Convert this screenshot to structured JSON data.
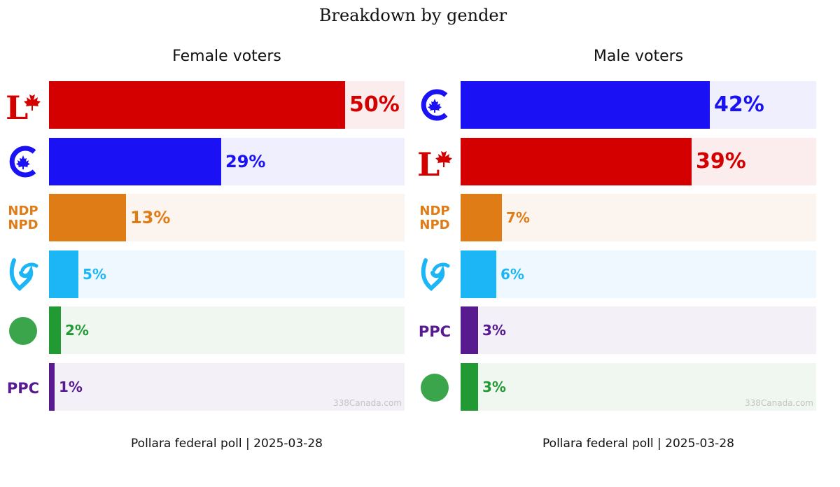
{
  "title": "Breakdown by gender",
  "parties": {
    "LPC": {
      "color": "#d40000",
      "bg": "#fbeded",
      "icon": "liberal-maple-leaf-logo"
    },
    "CPC": {
      "color": "#1a12f5",
      "bg": "#efeffd",
      "icon": "conservative-c-logo"
    },
    "NDP": {
      "color": "#e07c16",
      "bg": "#fbf4ef",
      "icon": "ndp-npd-logo",
      "logo_text": [
        "NDP",
        "NPD"
      ]
    },
    "BQ": {
      "color": "#1cb6f7",
      "bg": "#eef8fe",
      "icon": "bloc-fleur-logo"
    },
    "GPC": {
      "color": "#229a33",
      "bg": "#eff7f0",
      "icon": "green-circle-logo"
    },
    "PPC": {
      "color": "#571a8f",
      "bg": "#f3f0f7",
      "icon": "ppc-logo",
      "logo_text": "PPC"
    }
  },
  "chart_data": [
    {
      "type": "bar",
      "title": "Female voters",
      "categories": [
        "LPC",
        "CPC",
        "NDP",
        "BQ",
        "GPC",
        "PPC"
      ],
      "values": [
        50,
        29,
        13,
        5,
        2,
        1
      ],
      "labels": [
        "50%",
        "29%",
        "13%",
        "5%",
        "2%",
        "1%"
      ],
      "xlim": [
        0,
        60
      ],
      "watermark": "338Canada.com",
      "source": "Pollara federal poll | 2025-03-28"
    },
    {
      "type": "bar",
      "title": "Male voters",
      "categories": [
        "CPC",
        "LPC",
        "NDP",
        "BQ",
        "PPC",
        "GPC"
      ],
      "values": [
        42,
        39,
        7,
        6,
        3,
        3
      ],
      "labels": [
        "42%",
        "39%",
        "7%",
        "6%",
        "3%",
        "3%"
      ],
      "xlim": [
        0,
        60
      ],
      "watermark": "338Canada.com",
      "source": "Pollara federal poll | 2025-03-28"
    }
  ]
}
